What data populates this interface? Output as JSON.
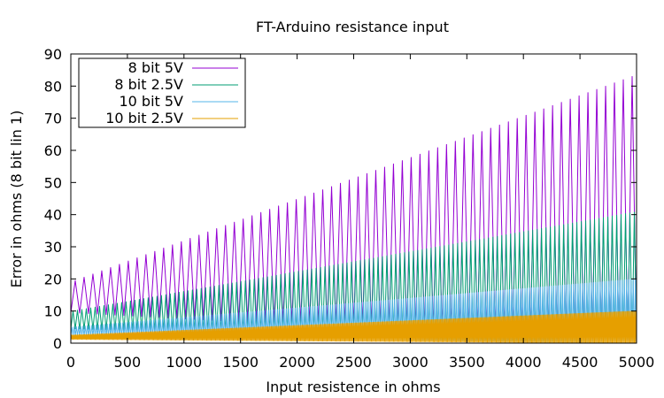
{
  "chart_data": {
    "type": "line",
    "title": "FT-Arduino resistance input",
    "xlabel": "Input resistence in ohms",
    "ylabel": "Error in ohms (8 bit lin 1)",
    "xlim": [
      0,
      5000
    ],
    "ylim": [
      0,
      90
    ],
    "x_ticks": [
      0,
      500,
      1000,
      1500,
      2000,
      2500,
      3000,
      3500,
      4000,
      4500,
      5000
    ],
    "y_ticks": [
      0,
      10,
      20,
      30,
      40,
      50,
      60,
      70,
      80,
      90
    ],
    "grid": false,
    "legend_position": "top-left",
    "series": [
      {
        "name": "8 bit 5V",
        "color": "#9400d3",
        "floor_start": 9.5,
        "floor_end": 0,
        "peak_start": 19.5,
        "peak_end": 84,
        "cycles": 64
      },
      {
        "name": "8 bit 2.5V",
        "color": "#009e73",
        "floor_start": 4.5,
        "floor_end": 0,
        "peak_start": 10,
        "peak_end": 41,
        "cycles": 128
      },
      {
        "name": "10 bit 5V",
        "color": "#56b4e9",
        "floor_start": 2.3,
        "floor_end": 0,
        "peak_start": 5,
        "peak_end": 20,
        "cycles": 256
      },
      {
        "name": "10 bit 2.5V",
        "color": "#e69f00",
        "floor_start": 1.2,
        "floor_end": 0,
        "peak_start": 2.5,
        "peak_end": 10,
        "cycles": 512
      }
    ]
  }
}
